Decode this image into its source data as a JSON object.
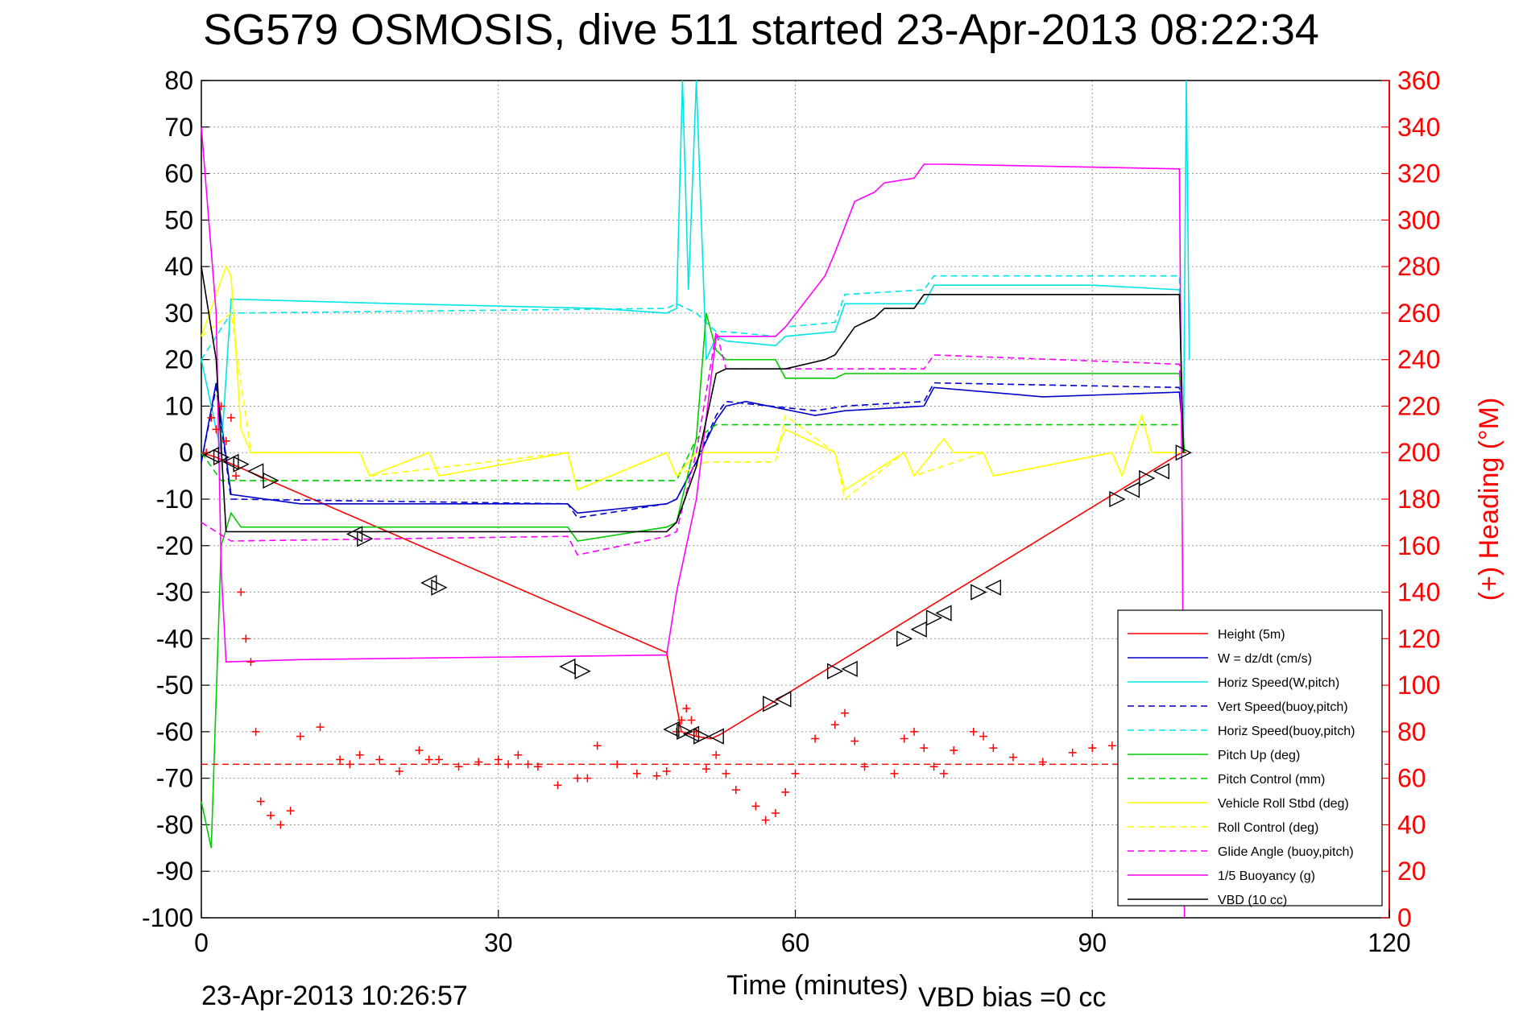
{
  "chart_data": {
    "type": "line",
    "title": "SG579 OSMOSIS, dive 511 started 23-Apr-2013 08:22:34",
    "xlabel": "Time (minutes)",
    "ylabel": "",
    "y2label": "(+) Heading (°M)",
    "footer_left": "23-Apr-2013 10:26:57",
    "footer_right": "VBD bias =0 cc",
    "xlim": [
      0,
      120
    ],
    "ylim": [
      -100,
      80
    ],
    "y2lim": [
      0,
      360
    ],
    "xticks": [
      0,
      30,
      60,
      90,
      120
    ],
    "yticks": [
      80,
      70,
      60,
      50,
      40,
      30,
      20,
      10,
      0,
      -10,
      -20,
      -30,
      -40,
      -50,
      -60,
      -70,
      -80,
      -90,
      -100
    ],
    "y2ticks": [
      360,
      340,
      320,
      300,
      280,
      260,
      240,
      220,
      200,
      180,
      160,
      140,
      120,
      100,
      80,
      60,
      40,
      20,
      0
    ],
    "grid": true,
    "legend_position": "bottom-right",
    "colors": {
      "height": "#ff0000",
      "w": "#0000cc",
      "horiz_speed": "#00e5e5",
      "pitch": "#00cc00",
      "roll": "#ffff00",
      "buoyancy": "#ff00ff",
      "vbd": "#000000",
      "right_axis": "#ff0000"
    },
    "series": [
      {
        "name": "Height (5m)",
        "key": "height",
        "style": "solid",
        "color": "#ff0000",
        "x": [
          0,
          1.5,
          47,
          48.5,
          50,
          51.5,
          52.5,
          99,
          99.5
        ],
        "y": [
          0,
          -1,
          -43,
          -60,
          -61,
          -61.5,
          -60.5,
          0,
          0
        ]
      },
      {
        "name": "W = dz/dt (cm/s)",
        "key": "w",
        "style": "solid",
        "color": "#0000cc",
        "x": [
          0,
          1.5,
          3,
          10,
          37,
          38,
          47,
          48,
          50,
          52,
          53,
          55,
          62,
          65,
          73,
          74,
          85,
          98.8,
          99.3
        ],
        "y": [
          -2,
          15,
          -9,
          -11,
          -11,
          -13,
          -11,
          -10,
          -2,
          7,
          10,
          11,
          8,
          9,
          10,
          14,
          12,
          13,
          0
        ]
      },
      {
        "name": "Horiz Speed(W,pitch)",
        "key": "horiz_speed",
        "style": "solid",
        "color": "#00e5e5",
        "x": [
          0,
          2,
          3,
          20,
          40,
          47,
          48,
          48.6,
          49.2,
          50,
          51,
          52,
          53,
          58,
          59,
          64,
          65,
          73,
          74,
          90,
          98.8,
          99.2,
          99.5,
          99.8
        ],
        "y": [
          20,
          0,
          33,
          32,
          31,
          30,
          31,
          80,
          35,
          80,
          20,
          25,
          24,
          23,
          25,
          26,
          32,
          32,
          36,
          36,
          35,
          0,
          80,
          20
        ]
      },
      {
        "name": "Vert Speed(buoy,pitch)",
        "key": "vert_speed",
        "style": "dashed",
        "color": "#0000cc",
        "x": [
          0,
          1.5,
          3,
          37,
          38,
          47,
          48,
          50,
          52,
          53,
          62,
          65,
          73,
          74,
          98.8,
          99.3
        ],
        "y": [
          -2,
          14,
          -10,
          -11,
          -14,
          -11,
          -10,
          -2,
          8,
          11,
          9,
          10,
          11,
          15,
          14,
          0
        ]
      },
      {
        "name": "Horiz Speed(buoy,pitch)",
        "key": "horiz_speed_buoy",
        "style": "dashed",
        "color": "#00e5e5",
        "x": [
          0,
          3,
          47,
          48,
          50,
          52,
          53,
          58,
          59,
          64,
          65,
          73,
          74,
          98.8,
          99.2
        ],
        "y": [
          20,
          30,
          31,
          32,
          30,
          26,
          26,
          25,
          27,
          28,
          34,
          35,
          38,
          38,
          0
        ]
      },
      {
        "name": "Pitch Up (deg)",
        "key": "pitch",
        "style": "solid",
        "color": "#00cc00",
        "x": [
          0,
          1,
          2,
          3,
          4,
          37,
          38,
          47,
          48,
          50,
          51,
          52,
          53,
          58,
          59,
          64,
          65,
          73,
          74,
          98.8,
          99.3
        ],
        "y": [
          -75,
          -85,
          -20,
          -13,
          -16,
          -16,
          -19,
          -16,
          -15,
          3,
          30,
          22,
          20,
          20,
          16,
          16,
          17,
          17,
          17,
          17,
          0
        ]
      },
      {
        "name": "Pitch Control (mm)",
        "key": "pitch_control",
        "style": "dashed",
        "color": "#00cc00",
        "x": [
          0,
          2,
          3,
          48,
          50,
          52,
          99
        ],
        "y": [
          0,
          -6,
          -6,
          -6,
          3,
          6,
          6
        ]
      },
      {
        "name": "Vehicle Roll Stbd (deg)",
        "key": "roll",
        "style": "solid",
        "color": "#ffff00",
        "x": [
          0,
          2.5,
          3,
          4,
          5,
          16,
          17,
          23,
          24,
          37,
          38,
          47,
          48,
          50,
          51,
          58,
          59,
          64,
          65,
          71,
          72,
          75,
          76,
          79,
          80,
          92,
          93,
          95,
          96,
          99
        ],
        "y": [
          25,
          40,
          38,
          5,
          0,
          0,
          -5,
          0,
          -5,
          0,
          -8,
          0,
          -5,
          0,
          0,
          0,
          5,
          0,
          -8,
          0,
          -5,
          3,
          0,
          0,
          -5,
          0,
          -5,
          8,
          0,
          0
        ]
      },
      {
        "name": "Roll Control (deg)",
        "key": "roll_control",
        "style": "dashed",
        "color": "#ffff00",
        "x": [
          0,
          3,
          5,
          16,
          17,
          37,
          38,
          47,
          48,
          51,
          58,
          59,
          64,
          65,
          71,
          72,
          79,
          80,
          92,
          93,
          95,
          96,
          99
        ],
        "y": [
          25,
          30,
          0,
          0,
          -5,
          0,
          -8,
          0,
          -5,
          -2,
          -2,
          8,
          0,
          -10,
          0,
          -5,
          0,
          -5,
          0,
          -5,
          8,
          0,
          0
        ]
      },
      {
        "name": "Glide Angle (buoy,pitch)",
        "key": "glide_angle",
        "style": "dashed",
        "color": "#ff00ff",
        "x": [
          0,
          3,
          37,
          38,
          47,
          48,
          50,
          52,
          53,
          73,
          74,
          98.8,
          99.2
        ],
        "y": [
          -15,
          -19,
          -18,
          -22,
          -18,
          -17,
          0,
          26,
          18,
          18,
          21,
          19,
          0
        ]
      },
      {
        "name": "1/5 Buoyancy (g)",
        "key": "buoyancy",
        "style": "solid",
        "color": "#ff00ff",
        "x": [
          0,
          1.5,
          2,
          2.5,
          10,
          47,
          48,
          50,
          52,
          58,
          59,
          63,
          64,
          66,
          67,
          68,
          69,
          72,
          73,
          74,
          75,
          98.8,
          99.1,
          99.3
        ],
        "y": [
          70,
          30,
          -25,
          -45,
          -44.5,
          -43.5,
          -30,
          -10,
          25,
          25,
          27,
          38,
          43,
          54,
          55,
          56,
          58,
          59,
          62,
          62,
          62,
          61,
          -20,
          -100
        ]
      },
      {
        "name": "VBD (10 cc)",
        "key": "vbd",
        "style": "solid",
        "color": "#000000",
        "x": [
          0,
          1.5,
          2.5,
          47,
          48,
          50,
          52,
          53,
          58,
          59,
          63,
          64,
          66,
          67,
          68,
          69,
          72,
          73,
          74,
          98.8,
          99.2
        ],
        "y": [
          40,
          20,
          -17,
          -17,
          -15,
          -3,
          17,
          18,
          18,
          18,
          20,
          21,
          27,
          28,
          29,
          31,
          31,
          34,
          34,
          34,
          0
        ]
      }
    ],
    "heading_series": {
      "axis": "right",
      "marker": "+",
      "color": "#ff0000",
      "reference_heading": 66,
      "x": [
        0.5,
        1,
        1.5,
        2,
        2.5,
        3,
        3.5,
        4,
        4.5,
        5,
        5.5,
        6,
        7,
        8,
        9,
        10,
        12,
        14,
        15,
        16,
        18,
        20,
        22,
        23,
        24,
        26,
        28,
        30,
        31,
        32,
        33,
        34,
        36,
        38,
        39,
        40,
        42,
        44,
        46,
        47,
        48,
        48.5,
        49,
        49.5,
        50,
        51,
        52,
        53,
        54,
        56,
        57,
        58,
        59,
        60,
        62,
        64,
        65,
        66,
        67,
        70,
        71,
        72,
        73,
        74,
        75,
        76,
        78,
        79,
        80,
        82,
        85,
        88,
        90,
        92,
        93
      ],
      "y": [
        200,
        215,
        210,
        220,
        205,
        215,
        190,
        140,
        120,
        110,
        80,
        50,
        44,
        40,
        46,
        78,
        82,
        68,
        66,
        70,
        68,
        63,
        72,
        68,
        68,
        65,
        67,
        68,
        66,
        70,
        66,
        65,
        57,
        60,
        60,
        74,
        66,
        62,
        61,
        63,
        80,
        85,
        90,
        85,
        80,
        64,
        70,
        62,
        55,
        48,
        42,
        45,
        54,
        62,
        77,
        83,
        88,
        76,
        65,
        62,
        77,
        80,
        73,
        65,
        62,
        72,
        80,
        78,
        73,
        69,
        67,
        71,
        73,
        74,
        78
      ]
    },
    "stall_markers": {
      "shape": "triangle",
      "color": "#000000",
      "points": [
        [
          1,
          -0.5
        ],
        [
          2,
          -1
        ],
        [
          3,
          -2
        ],
        [
          4,
          -2.5
        ],
        [
          5.5,
          -4
        ],
        [
          7,
          -6
        ],
        [
          15.5,
          -17.5
        ],
        [
          16.5,
          -18.5
        ],
        [
          23,
          -28
        ],
        [
          24,
          -29
        ],
        [
          37,
          -46
        ],
        [
          38.5,
          -47
        ],
        [
          47.5,
          -59.5
        ],
        [
          48.8,
          -60
        ],
        [
          49.5,
          -60.5
        ],
        [
          50.5,
          -61
        ],
        [
          52,
          -61
        ],
        [
          57.5,
          -54
        ],
        [
          58.8,
          -53
        ],
        [
          64,
          -47
        ],
        [
          65.5,
          -46.5
        ],
        [
          71,
          -40
        ],
        [
          72.5,
          -38
        ],
        [
          74,
          -35.5
        ],
        [
          75,
          -34.5
        ],
        [
          78.5,
          -30
        ],
        [
          80,
          -29
        ],
        [
          92.5,
          -10
        ],
        [
          94,
          -8
        ],
        [
          95.5,
          -5.5
        ],
        [
          97,
          -4
        ],
        [
          99.2,
          0
        ]
      ]
    }
  }
}
